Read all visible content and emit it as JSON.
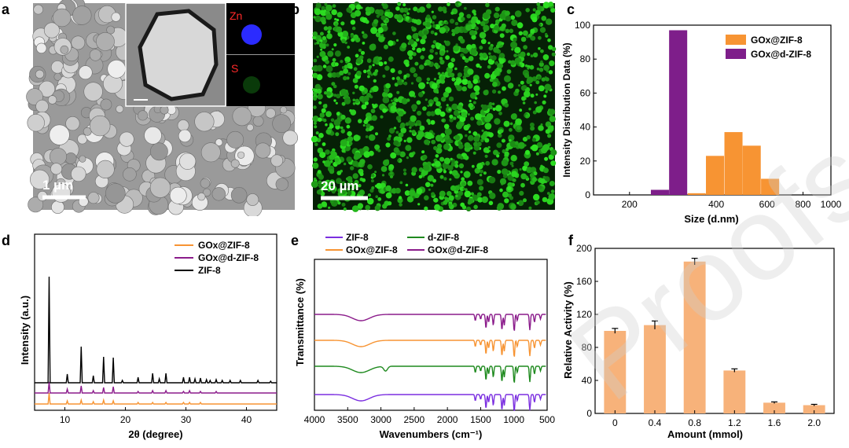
{
  "panels": {
    "a": {
      "letter": "a",
      "scale_bar": "1 µm",
      "map_zn": "Zn",
      "map_s": "S"
    },
    "b": {
      "letter": "b",
      "scale_bar": "20 µm"
    }
  },
  "watermark": "Proofs",
  "chart_data": [
    {
      "id": "c",
      "letter": "c",
      "type": "bar",
      "xlabel": "Size (d.nm)",
      "ylabel": "Intensity Distribution Data (%)",
      "xscale": "log",
      "xlim": [
        150,
        1000
      ],
      "ylim": [
        0,
        100
      ],
      "xticks": [
        200,
        400,
        600,
        800,
        1000
      ],
      "yticks": [
        0,
        20,
        40,
        60,
        80,
        100
      ],
      "series": [
        {
          "name": "GOx@ZIF-8",
          "color": "#f79433",
          "bars": [
            [
              342,
              1
            ],
            [
              396,
              23
            ],
            [
              459,
              37
            ],
            [
              531,
              29
            ],
            [
              615,
              9.5
            ]
          ]
        },
        {
          "name": "GOx@d-ZIF-8",
          "color": "#7e1e8a",
          "bars": [
            [
              255,
              3
            ],
            [
              295,
              97
            ]
          ]
        }
      ]
    },
    {
      "id": "d",
      "letter": "d",
      "type": "line",
      "xlabel": "2θ (degree)",
      "ylabel": "Intensity (a.u.)",
      "xlim": [
        5,
        45
      ],
      "xticks": [
        10,
        20,
        30,
        40
      ],
      "series": [
        {
          "name": "GOx@ZIF-8",
          "color": "#f79433",
          "baseline": 0,
          "peaks": [
            [
              7.4,
              14
            ],
            [
              10.4,
              4
            ],
            [
              12.7,
              5
            ],
            [
              14.7,
              3
            ],
            [
              16.4,
              5
            ],
            [
              18.0,
              4
            ],
            [
              22.1,
              2
            ],
            [
              24.5,
              2
            ],
            [
              26.7,
              2
            ],
            [
              29.6,
              2
            ],
            [
              30.6,
              2
            ],
            [
              32.4,
              2
            ]
          ]
        },
        {
          "name": "GOx@d-ZIF-8",
          "color": "#8b1c8b",
          "baseline": 14,
          "peaks": [
            [
              7.4,
              14
            ],
            [
              10.4,
              5
            ],
            [
              12.7,
              9
            ],
            [
              14.7,
              3
            ],
            [
              16.4,
              7
            ],
            [
              18.0,
              8
            ],
            [
              22.1,
              2
            ],
            [
              24.5,
              3
            ],
            [
              26.7,
              3
            ],
            [
              29.6,
              2
            ],
            [
              30.6,
              3
            ],
            [
              32.4,
              2
            ],
            [
              35.0,
              2
            ]
          ]
        },
        {
          "name": "ZIF-8",
          "color": "#000000",
          "baseline": 27,
          "peaks": [
            [
              7.4,
              135
            ],
            [
              10.4,
              11
            ],
            [
              12.7,
              46
            ],
            [
              14.7,
              9
            ],
            [
              16.4,
              33
            ],
            [
              18.0,
              32
            ],
            [
              19.5,
              3
            ],
            [
              22.1,
              7
            ],
            [
              24.5,
              12
            ],
            [
              25.6,
              5
            ],
            [
              26.7,
              12
            ],
            [
              29.6,
              7
            ],
            [
              30.6,
              7
            ],
            [
              31.5,
              5
            ],
            [
              32.4,
              6
            ],
            [
              33.4,
              4
            ],
            [
              34.0,
              3
            ],
            [
              35.0,
              4
            ],
            [
              36.0,
              3
            ],
            [
              37.3,
              3
            ],
            [
              39.0,
              3
            ],
            [
              41.9,
              3
            ],
            [
              44.0,
              2
            ]
          ]
        }
      ]
    },
    {
      "id": "e",
      "letter": "e",
      "type": "line",
      "xlabel": "Wavenumbers (cm⁻¹)",
      "ylabel": "Transmittance (%)",
      "xlim": [
        4000,
        500
      ],
      "xticks": [
        4000,
        3500,
        3000,
        2500,
        2000,
        1500,
        1000,
        500
      ],
      "series": [
        {
          "name": "ZIF-8",
          "color": "#7b2fe0",
          "baseline": 10
        },
        {
          "name": "d-ZIF-8",
          "color": "#1f8a1f",
          "baseline": 46
        },
        {
          "name": "GOx@ZIF-8",
          "color": "#f79433",
          "baseline": 79
        },
        {
          "name": "GOx@d-ZIF-8",
          "color": "#8b1c8b",
          "baseline": 112
        }
      ]
    },
    {
      "id": "f",
      "letter": "f",
      "type": "bar",
      "xlabel": "Amount (mmol)",
      "ylabel": "Relative Activity (%)",
      "ylim": [
        0,
        200
      ],
      "yticks": [
        0,
        40,
        80,
        120,
        160,
        200
      ],
      "categories": [
        "0",
        "0.4",
        "0.8",
        "1.2",
        "1.6",
        "2.0"
      ],
      "values": [
        100,
        107,
        184,
        52,
        13,
        10
      ],
      "errors": [
        3,
        5,
        4,
        2,
        1,
        1
      ],
      "color": "#f7b27a"
    }
  ]
}
